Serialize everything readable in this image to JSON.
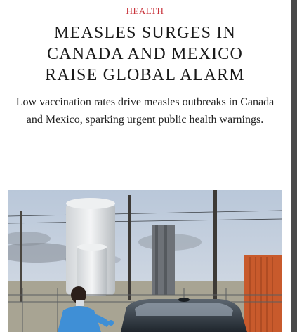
{
  "article": {
    "category": "HEALTH",
    "headline_lines": [
      "MEASLES SURGES IN",
      "CANADA AND MEXICO",
      "RAISE GLOBAL ALARM"
    ],
    "dek": "Low vaccination rates drive measles outbreaks in Canada and Mexico, sparking urgent public health warnings."
  },
  "colors": {
    "category": "#c8323a",
    "headline": "#1a1a1a",
    "scrollbar_thumb": "#4a4a4a"
  }
}
